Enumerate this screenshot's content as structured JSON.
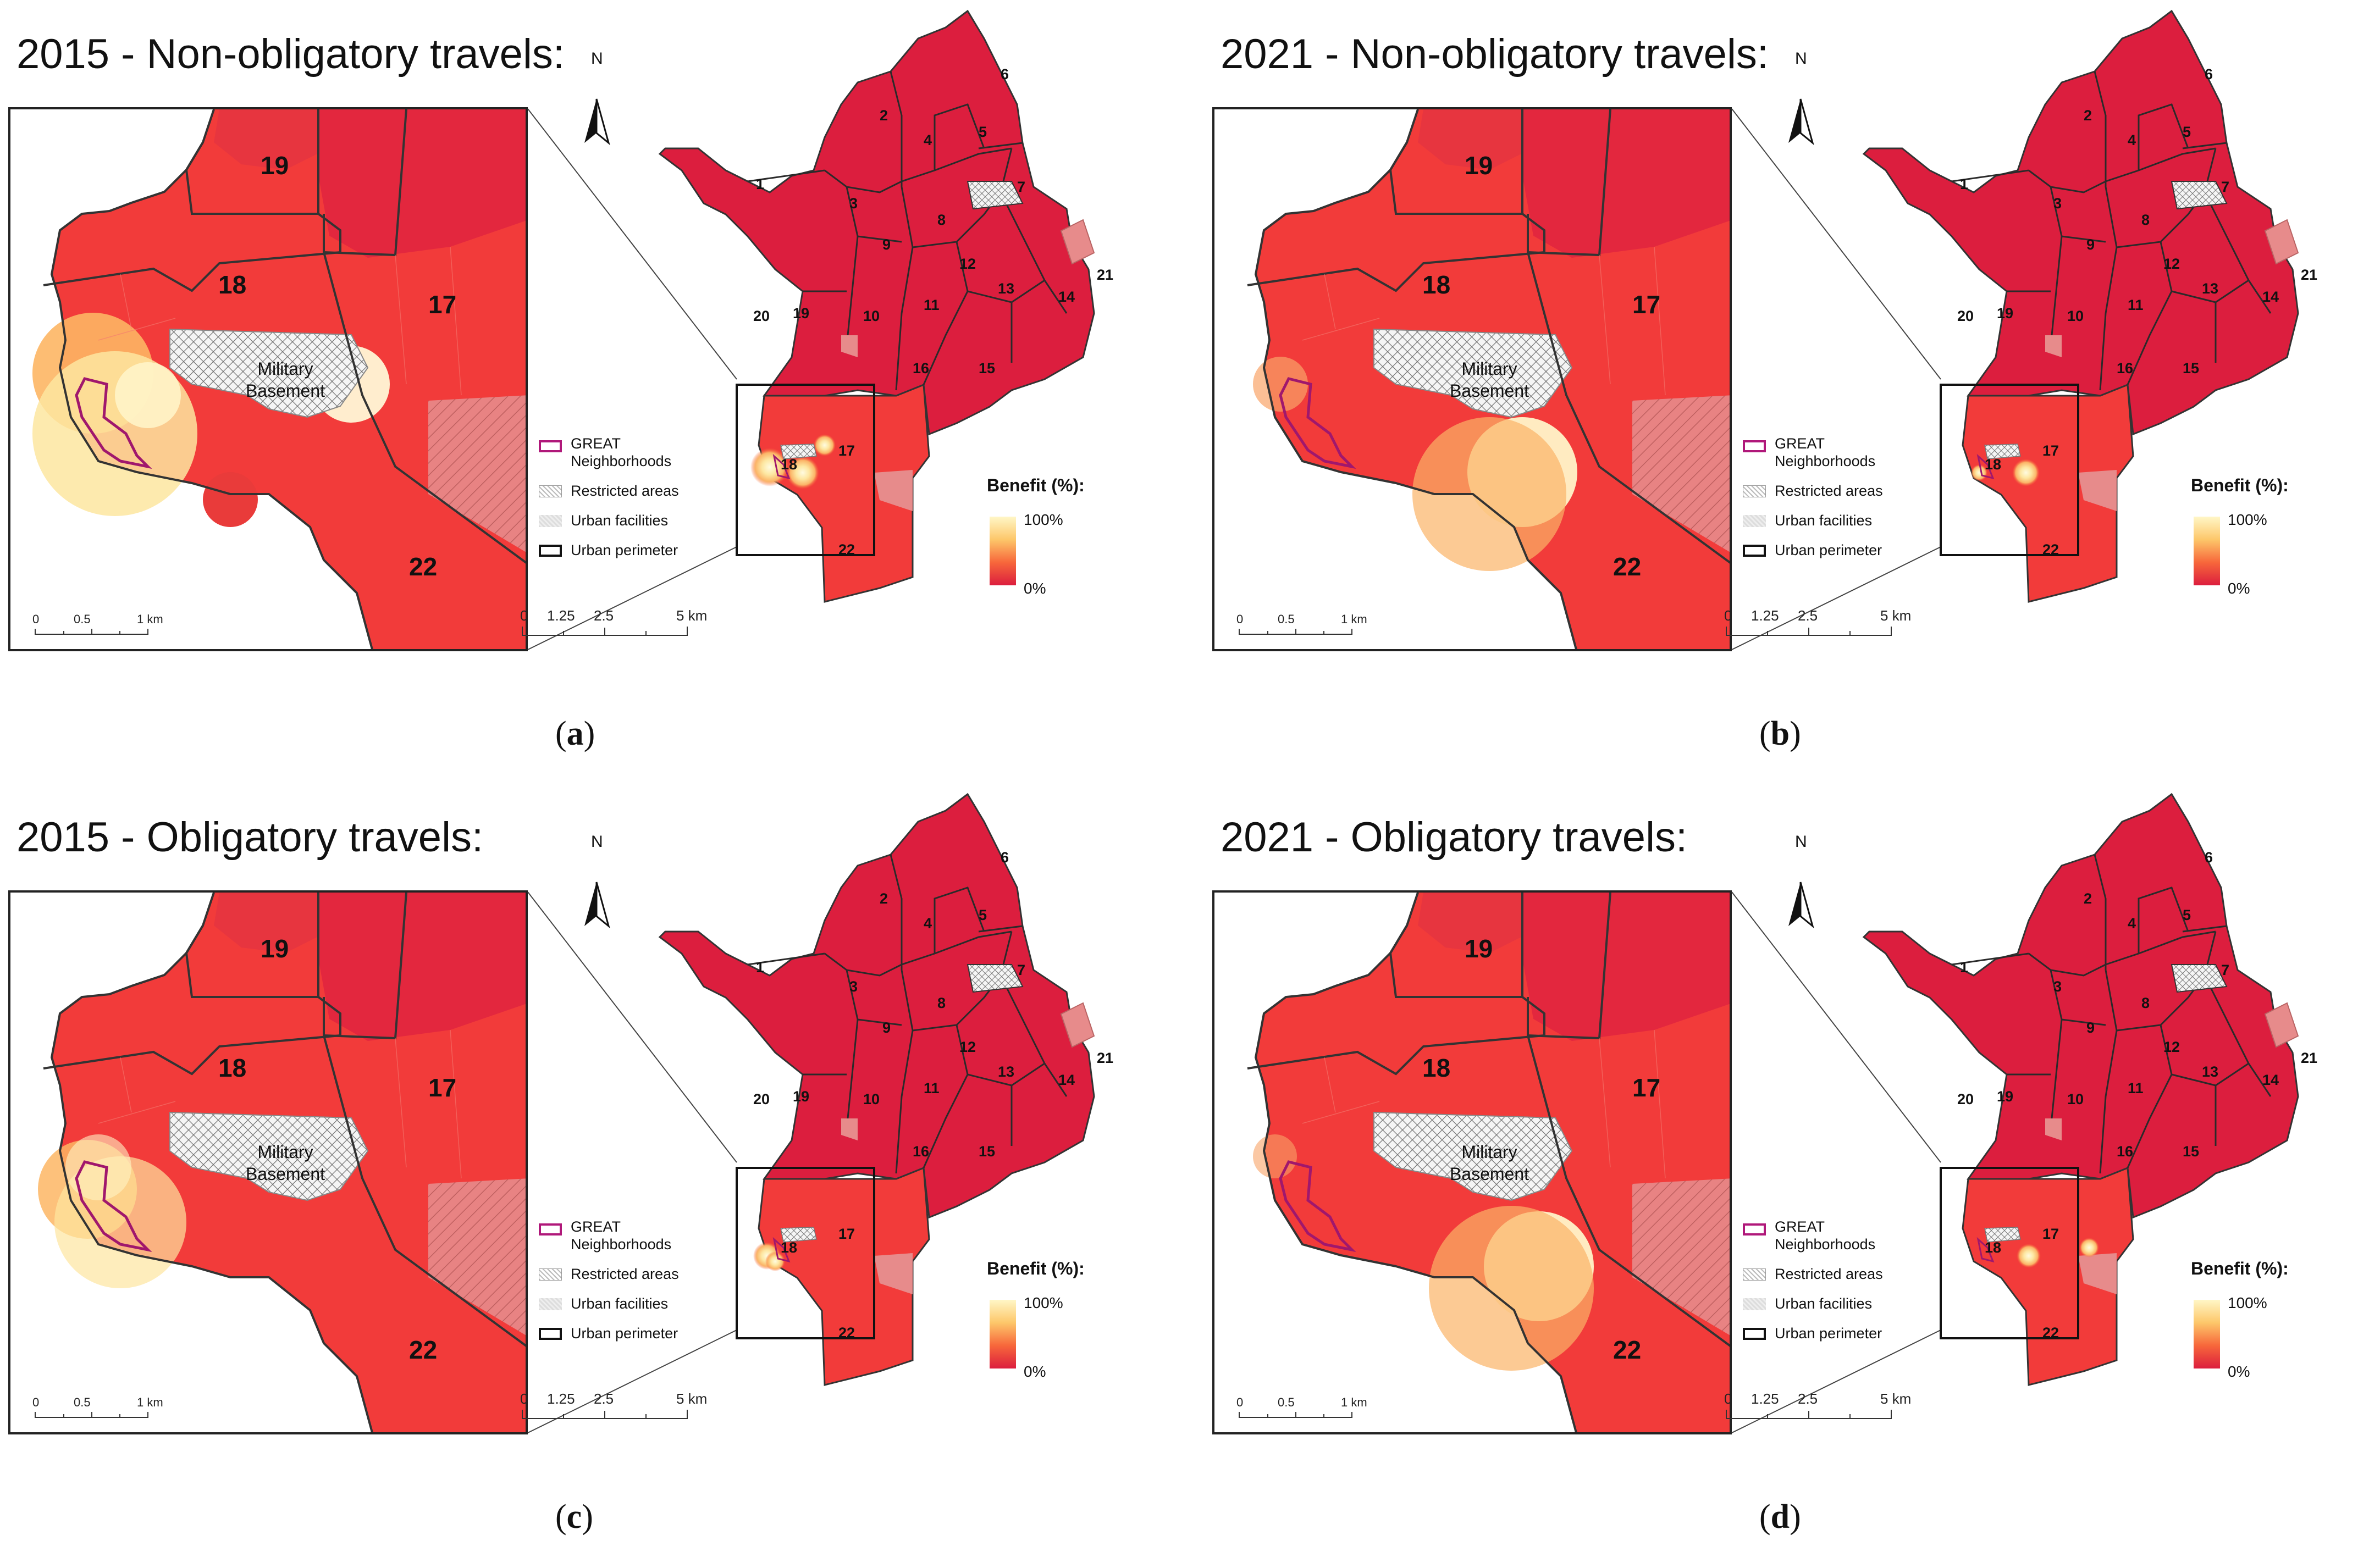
{
  "panels": [
    {
      "title": "2015 - Non-obligatory travels:",
      "caption": "a",
      "hotspots": "nonob2015"
    },
    {
      "title": "2021 - Non-obligatory travels:",
      "caption": "b",
      "hotspots": "nonob2021"
    },
    {
      "title": "2015 - Obligatory travels:",
      "caption": "c",
      "hotspots": "ob2015"
    },
    {
      "title": "2021 - Obligatory travels:",
      "caption": "d",
      "hotspots": "ob2021"
    }
  ],
  "inset_labels": {
    "n19": "19",
    "n18": "18",
    "n17": "17",
    "n22": "22",
    "military_line1": "Military",
    "military_line2": "Basement"
  },
  "neighborhood_numbers": [
    "1",
    "2",
    "3",
    "4",
    "5",
    "6",
    "7",
    "8",
    "9",
    "10",
    "11",
    "12",
    "13",
    "14",
    "15",
    "16",
    "17",
    "18",
    "19",
    "20",
    "21",
    "22"
  ],
  "north_label": "N",
  "inset_scale": {
    "t0": "0",
    "t1": "0.5",
    "t2": "1 km"
  },
  "map_scale": {
    "t0": "0",
    "t1": "1.25",
    "t2": "2.5",
    "t3": "5 km"
  },
  "legend": {
    "great_line1": "GREAT",
    "great_line2": "Neighborhoods",
    "restricted": "Restricted areas",
    "urban_facilities": "Urban facilities",
    "urban_perimeter": "Urban perimeter"
  },
  "benefit": {
    "title": "Benefit (%):",
    "max": "100%",
    "min": "0%"
  },
  "colors": {
    "low": "#dc1e3e",
    "mid": "#f7673b",
    "high": "#fff7c7",
    "outline": "#333333",
    "great": "#b0187a"
  }
}
